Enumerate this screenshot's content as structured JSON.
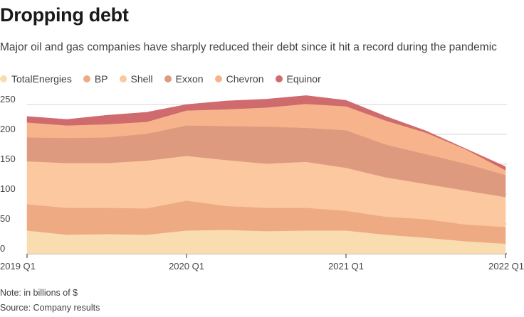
{
  "title": "Dropping debt",
  "subtitle": "Major oil and gas companies have sharply reduced their debt since it hit a record during the pandemic",
  "note": "Note: in billions of $",
  "source": "Source: Company results",
  "chart_data": {
    "type": "area",
    "stacked": true,
    "x": [
      0,
      1,
      2,
      3,
      4,
      5,
      6,
      7,
      8,
      9,
      10,
      11,
      12
    ],
    "x_tick_labels": [
      "2019 Q1",
      "2020 Q1",
      "2021 Q1",
      "2022 Q1"
    ],
    "x_tick_positions": [
      0,
      4,
      8,
      12
    ],
    "ylim": [
      0,
      250
    ],
    "y_ticks": [
      0,
      50,
      100,
      150,
      200,
      250
    ],
    "grid": true,
    "legend_placement": "top-left",
    "series": [
      {
        "name": "TotalEnergies",
        "color": "#f9dcb0",
        "values": [
          39,
          32,
          33,
          32,
          39,
          40,
          38,
          39,
          39,
          32,
          27,
          21,
          17
        ]
      },
      {
        "name": "BP",
        "color": "#eeaa82",
        "values": [
          44,
          45,
          44,
          44,
          50,
          40,
          39,
          38,
          33,
          30,
          31,
          28,
          28
        ]
      },
      {
        "name": "Shell",
        "color": "#fbc8a0",
        "values": [
          72,
          75,
          75,
          80,
          75,
          77,
          74,
          77,
          72,
          66,
          59,
          57,
          50
        ]
      },
      {
        "name": "Exxon",
        "color": "#de9a7e",
        "values": [
          40,
          42,
          43,
          45,
          51,
          57,
          62,
          57,
          63,
          55,
          50,
          45,
          37
        ]
      },
      {
        "name": "Chevron",
        "color": "#f7b48c",
        "values": [
          25,
          21,
          22,
          20,
          25,
          28,
          32,
          40,
          40,
          40,
          36,
          24,
          8
        ]
      },
      {
        "name": "Equinor",
        "color": "#cf6b6d",
        "values": [
          10,
          10,
          15,
          16,
          10,
          14,
          14,
          14,
          10,
          7,
          3,
          1,
          6
        ]
      }
    ]
  }
}
